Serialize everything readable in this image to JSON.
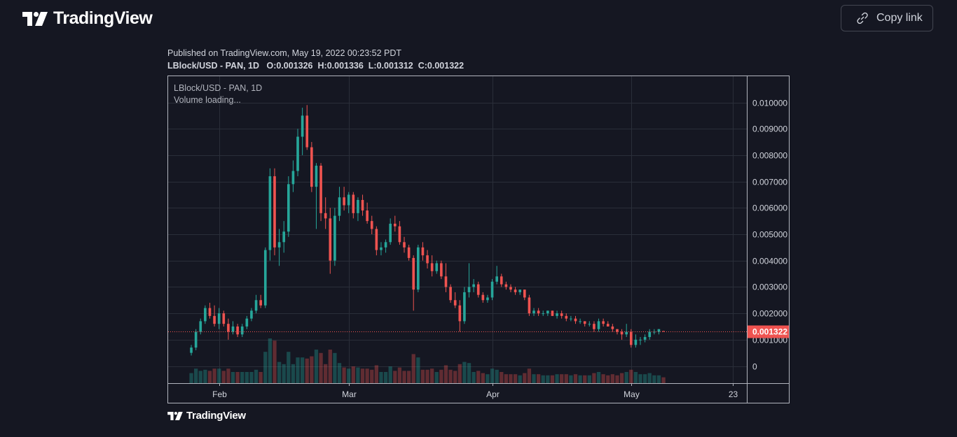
{
  "header": {
    "brand": "TradingView",
    "copy_link_label": "Copy link"
  },
  "published_text": "Published on TradingView.com, May 19, 2022 00:23:52 PDT",
  "ohlc_line": {
    "symbol": "LBlock/USD - PAN, 1D",
    "o_label": "O:",
    "o": "0.001326",
    "h_label": "H:",
    "h": "0.001336",
    "l_label": "L:",
    "l": "0.001312",
    "c_label": "C:",
    "c": "0.001322"
  },
  "footer": {
    "brand": "TradingView"
  },
  "colors": {
    "up": "#26a69a",
    "down": "#ef5350",
    "background": "#151722",
    "grid": "#2a2e39",
    "price_badge": "#ef5350"
  },
  "chart_data": {
    "type": "candlestick",
    "legend_title": "LBlock/USD - PAN, 1D",
    "legend_status": "Volume loading...",
    "last_price_label": "0.001322",
    "last_price": 0.001322,
    "y_ticks": [
      "0.010000",
      "0.009000",
      "0.008000",
      "0.007000",
      "0.006000",
      "0.005000",
      "0.004000",
      "0.003000",
      "0.002000",
      "0.001000",
      "0"
    ],
    "y_tick_values": [
      0.01,
      0.009,
      0.008,
      0.007,
      0.006,
      0.005,
      0.004,
      0.003,
      0.002,
      0.001,
      0
    ],
    "ylim": [
      -0.00065,
      0.01075
    ],
    "x_ticks": [
      "Feb",
      "Mar",
      "Apr",
      "May",
      "23"
    ],
    "x_tick_dates": [
      "2022-02-01",
      "2022-03-01",
      "2022-04-01",
      "2022-05-01",
      "2022-05-23"
    ],
    "date_range": [
      "2022-01-21",
      "2022-05-26"
    ],
    "first_date": "2022-01-26",
    "grid": true,
    "candles": [
      [
        0.0005,
        0.0008,
        0.0004,
        0.0007
      ],
      [
        0.0007,
        0.0014,
        0.0006,
        0.0013
      ],
      [
        0.0013,
        0.0018,
        0.0012,
        0.0017
      ],
      [
        0.0017,
        0.0023,
        0.0016,
        0.0022
      ],
      [
        0.0022,
        0.0024,
        0.0018,
        0.0019
      ],
      [
        0.0019,
        0.0023,
        0.0015,
        0.0016
      ],
      [
        0.0016,
        0.0022,
        0.0014,
        0.002
      ],
      [
        0.002,
        0.0021,
        0.0015,
        0.0016
      ],
      [
        0.0016,
        0.0018,
        0.001,
        0.0013
      ],
      [
        0.0013,
        0.0017,
        0.0012,
        0.0015
      ],
      [
        0.0015,
        0.0016,
        0.0011,
        0.0012
      ],
      [
        0.0012,
        0.0016,
        0.0011,
        0.0015
      ],
      [
        0.0015,
        0.0019,
        0.0014,
        0.0018
      ],
      [
        0.0018,
        0.0022,
        0.0017,
        0.0021
      ],
      [
        0.0021,
        0.0027,
        0.002,
        0.0025
      ],
      [
        0.0025,
        0.0027,
        0.0022,
        0.0023
      ],
      [
        0.0023,
        0.0045,
        0.0022,
        0.0044
      ],
      [
        0.0044,
        0.0075,
        0.004,
        0.0072
      ],
      [
        0.0072,
        0.0075,
        0.0042,
        0.0045
      ],
      [
        0.0045,
        0.0052,
        0.0038,
        0.0047
      ],
      [
        0.0047,
        0.0055,
        0.0043,
        0.0051
      ],
      [
        0.0051,
        0.0072,
        0.0049,
        0.0069
      ],
      [
        0.0069,
        0.0078,
        0.0066,
        0.0074
      ],
      [
        0.0074,
        0.009,
        0.0072,
        0.0087
      ],
      [
        0.0087,
        0.0098,
        0.008,
        0.0095
      ],
      [
        0.0095,
        0.0099,
        0.0082,
        0.0083
      ],
      [
        0.0083,
        0.0085,
        0.0066,
        0.0068
      ],
      [
        0.0068,
        0.0077,
        0.0052,
        0.0076
      ],
      [
        0.0076,
        0.0077,
        0.0055,
        0.0058
      ],
      [
        0.0058,
        0.0064,
        0.0052,
        0.0056
      ],
      [
        0.0056,
        0.006,
        0.0035,
        0.004
      ],
      [
        0.004,
        0.006,
        0.0038,
        0.0057
      ],
      [
        0.0057,
        0.0068,
        0.0055,
        0.0064
      ],
      [
        0.0064,
        0.0068,
        0.0059,
        0.0061
      ],
      [
        0.0061,
        0.0066,
        0.0058,
        0.0065
      ],
      [
        0.0065,
        0.0066,
        0.0056,
        0.0058
      ],
      [
        0.0058,
        0.0064,
        0.0055,
        0.0063
      ],
      [
        0.0063,
        0.0065,
        0.0057,
        0.0059
      ],
      [
        0.0059,
        0.0062,
        0.0054,
        0.0055
      ],
      [
        0.0055,
        0.0057,
        0.005,
        0.0052
      ],
      [
        0.0052,
        0.0053,
        0.0042,
        0.0044
      ],
      [
        0.0044,
        0.0047,
        0.0042,
        0.0045
      ],
      [
        0.0045,
        0.0048,
        0.0043,
        0.0047
      ],
      [
        0.0047,
        0.0056,
        0.0046,
        0.0054
      ],
      [
        0.0054,
        0.0057,
        0.0051,
        0.0053
      ],
      [
        0.0053,
        0.0055,
        0.0046,
        0.0047
      ],
      [
        0.0047,
        0.0049,
        0.0043,
        0.0045
      ],
      [
        0.0045,
        0.0046,
        0.004,
        0.0041
      ],
      [
        0.0041,
        0.0042,
        0.0021,
        0.0029
      ],
      [
        0.0029,
        0.0046,
        0.0028,
        0.0045
      ],
      [
        0.0045,
        0.0047,
        0.004,
        0.0042
      ],
      [
        0.0042,
        0.0044,
        0.0037,
        0.0039
      ],
      [
        0.0039,
        0.0042,
        0.0034,
        0.0036
      ],
      [
        0.0036,
        0.004,
        0.0035,
        0.0039
      ],
      [
        0.0039,
        0.004,
        0.0033,
        0.0034
      ],
      [
        0.0034,
        0.0039,
        0.0028,
        0.003
      ],
      [
        0.003,
        0.0031,
        0.0024,
        0.0025
      ],
      [
        0.0025,
        0.0028,
        0.0022,
        0.0023
      ],
      [
        0.0023,
        0.0025,
        0.0013,
        0.0017
      ],
      [
        0.0017,
        0.003,
        0.0016,
        0.0028
      ],
      [
        0.0028,
        0.0039,
        0.0026,
        0.003
      ],
      [
        0.003,
        0.0033,
        0.0028,
        0.0031
      ],
      [
        0.0031,
        0.0032,
        0.0026,
        0.0027
      ],
      [
        0.0027,
        0.0028,
        0.0024,
        0.0025
      ],
      [
        0.0025,
        0.0027,
        0.0024,
        0.0026
      ],
      [
        0.0026,
        0.0033,
        0.0025,
        0.0032
      ],
      [
        0.0032,
        0.0038,
        0.0031,
        0.0034
      ],
      [
        0.0034,
        0.0035,
        0.003,
        0.0031
      ],
      [
        0.0031,
        0.0032,
        0.0029,
        0.003
      ],
      [
        0.003,
        0.0031,
        0.0028,
        0.0029
      ],
      [
        0.0029,
        0.003,
        0.0027,
        0.0028
      ],
      [
        0.0028,
        0.0029,
        0.0027,
        0.0029
      ],
      [
        0.0029,
        0.0029,
        0.0025,
        0.0026
      ],
      [
        0.0026,
        0.0027,
        0.0019,
        0.002
      ],
      [
        0.002,
        0.0022,
        0.0019,
        0.0021
      ],
      [
        0.0021,
        0.0022,
        0.0019,
        0.002
      ],
      [
        0.002,
        0.0021,
        0.0019,
        0.002
      ],
      [
        0.002,
        0.0021,
        0.0019,
        0.0021
      ],
      [
        0.0021,
        0.0021,
        0.0019,
        0.0019
      ],
      [
        0.0019,
        0.0021,
        0.0018,
        0.002
      ],
      [
        0.002,
        0.0021,
        0.0018,
        0.0019
      ],
      [
        0.0019,
        0.002,
        0.0017,
        0.0018
      ],
      [
        0.0018,
        0.0019,
        0.0017,
        0.0018
      ],
      [
        0.0018,
        0.0019,
        0.0016,
        0.0017
      ],
      [
        0.0017,
        0.0018,
        0.0016,
        0.0017
      ],
      [
        0.0017,
        0.0017,
        0.0015,
        0.0016
      ],
      [
        0.0016,
        0.0017,
        0.0015,
        0.0016
      ],
      [
        0.0016,
        0.0017,
        0.0013,
        0.0014
      ],
      [
        0.0014,
        0.0018,
        0.0013,
        0.0017
      ],
      [
        0.0017,
        0.0018,
        0.0015,
        0.0016
      ],
      [
        0.0016,
        0.0017,
        0.0015,
        0.0015
      ],
      [
        0.0015,
        0.0016,
        0.0013,
        0.0014
      ],
      [
        0.0014,
        0.0014,
        0.0012,
        0.0013
      ],
      [
        0.0013,
        0.0014,
        0.001,
        0.0012
      ],
      [
        0.0012,
        0.0016,
        0.0011,
        0.0013
      ],
      [
        0.0013,
        0.0014,
        0.0007,
        0.0008
      ],
      [
        0.0008,
        0.0012,
        0.0007,
        0.001
      ],
      [
        0.001,
        0.0011,
        0.0008,
        0.001
      ],
      [
        0.001,
        0.0012,
        0.0009,
        0.0011
      ],
      [
        0.0011,
        0.0014,
        0.001,
        0.0013
      ],
      [
        0.0013,
        0.0014,
        0.0012,
        0.0013
      ],
      [
        0.0013,
        0.0014,
        0.0012,
        0.0014
      ],
      [
        0.001326,
        0.001336,
        0.001312,
        0.001322
      ]
    ]
  }
}
